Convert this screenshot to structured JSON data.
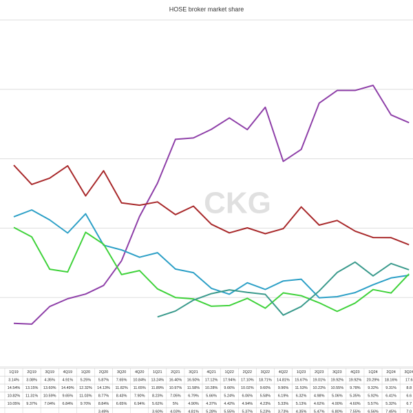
{
  "chart_data": {
    "type": "line",
    "title": "HOSE broker market share",
    "watermark": "CKG",
    "categories": [
      "1Q19",
      "2Q19",
      "3Q19",
      "4Q19",
      "1Q20",
      "2Q20",
      "3Q20",
      "4Q20",
      "1Q21",
      "2Q21",
      "3Q21",
      "4Q21",
      "1Q22",
      "2Q22",
      "3Q22",
      "4Q22",
      "1Q23",
      "2Q23",
      "3Q23",
      "4Q23",
      "1Q24",
      "2Q24",
      "3Q24"
    ],
    "ylim": [
      0,
      25
    ],
    "yticks": [
      0,
      5,
      10,
      15,
      20,
      25
    ],
    "grid": true,
    "series": [
      {
        "color": "#8e3fa8",
        "values": [
          3.14,
          3.08,
          4.35,
          4.91,
          5.25,
          5.87,
          7.65,
          10.84,
          13.24,
          16.4,
          16.5,
          17.12,
          17.94,
          17.1,
          18.71,
          14.81,
          15.67,
          19.01,
          19.92,
          19.92,
          20.29,
          18.16,
          17.6
        ],
        "value_labels": [
          "3.14%",
          "3.08%",
          "4.35%",
          "4.91%",
          "5.25%",
          "5.87%",
          "7.65%",
          "10.84%",
          "13.24%",
          "16.40%",
          "16.50%",
          "17.12%",
          "17.94%",
          "17.10%",
          "18.71%",
          "14.81%",
          "15.67%",
          "19.01%",
          "19.92%",
          "19.92%",
          "20.29%",
          "18.16%",
          "17.6"
        ]
      },
      {
        "color": "#a8282a",
        "values": [
          14.54,
          13.15,
          13.6,
          14.49,
          12.32,
          14.13,
          11.82,
          11.65,
          11.89,
          10.97,
          11.58,
          10.28,
          9.66,
          10.02,
          9.6,
          9.96,
          11.53,
          10.22,
          10.55,
          9.78,
          9.32,
          9.31,
          8.8
        ],
        "value_labels": [
          "14.54%",
          "13.15%",
          "13.60%",
          "14.49%",
          "12.32%",
          "14.13%",
          "11.82%",
          "11.65%",
          "11.89%",
          "10.97%",
          "11.58%",
          "10.28%",
          "9.66%",
          "10.02%",
          "9.60%",
          "9.96%",
          "11.53%",
          "10.22%",
          "10.55%",
          "9.78%",
          "9.32%",
          "9.31%",
          "8.8"
        ]
      },
      {
        "color": "#2b9fc6",
        "values": [
          10.82,
          11.31,
          10.59,
          9.65,
          11.03,
          8.77,
          8.43,
          7.9,
          8.23,
          7.05,
          6.79,
          5.66,
          5.24,
          6.06,
          5.58,
          6.19,
          6.32,
          4.98,
          5.06,
          5.35,
          5.92,
          6.41,
          6.6
        ],
        "value_labels": [
          "10.82%",
          "11.31%",
          "10.59%",
          "9.65%",
          "11.03%",
          "8.77%",
          "8.43%",
          "7.90%",
          "8.23%",
          "7.05%",
          "6.79%",
          "5.66%",
          "5.24%",
          "6.06%",
          "5.58%",
          "6.19%",
          "6.32%",
          "4.98%",
          "5.06%",
          "5.35%",
          "5.92%",
          "6.41%",
          "6.6"
        ]
      },
      {
        "color": "#3fd23a",
        "values": [
          10.05,
          9.37,
          7.04,
          6.84,
          9.7,
          8.84,
          6.65,
          6.94,
          5.62,
          5,
          4.9,
          4.37,
          4.42,
          4.94,
          4.23,
          5.33,
          5.13,
          4.62,
          4.0,
          4.6,
          5.57,
          5.32,
          6.7
        ],
        "value_labels": [
          "10.05%",
          "9.37%",
          "7.04%",
          "6.84%",
          "9.70%",
          "8.84%",
          "6.65%",
          "6.94%",
          "5.62%",
          "5%",
          "4.90%",
          "4.37%",
          "4.42%",
          "4.94%",
          "4.23%",
          "5.33%",
          "5.13%",
          "4.62%",
          "4.00%",
          "4.60%",
          "5.57%",
          "5.32%",
          "6.7"
        ]
      },
      {
        "color": "#3a9a8c",
        "values": [
          null,
          null,
          null,
          null,
          null,
          3.49,
          null,
          null,
          3.6,
          4.03,
          4.81,
          5.28,
          5.55,
          5.37,
          5.23,
          3.73,
          4.35,
          5.47,
          6.8,
          7.55,
          6.56,
          7.45,
          7.0
        ],
        "value_labels": [
          null,
          null,
          null,
          null,
          null,
          "3.49%",
          null,
          null,
          "3.60%",
          "4.03%",
          "4.81%",
          "5.28%",
          "5.55%",
          "5.37%",
          "5.23%",
          "3.73%",
          "4.35%",
          "5.47%",
          "6.80%",
          "7.55%",
          "6.56%",
          "7.45%",
          "7.0"
        ]
      }
    ]
  }
}
